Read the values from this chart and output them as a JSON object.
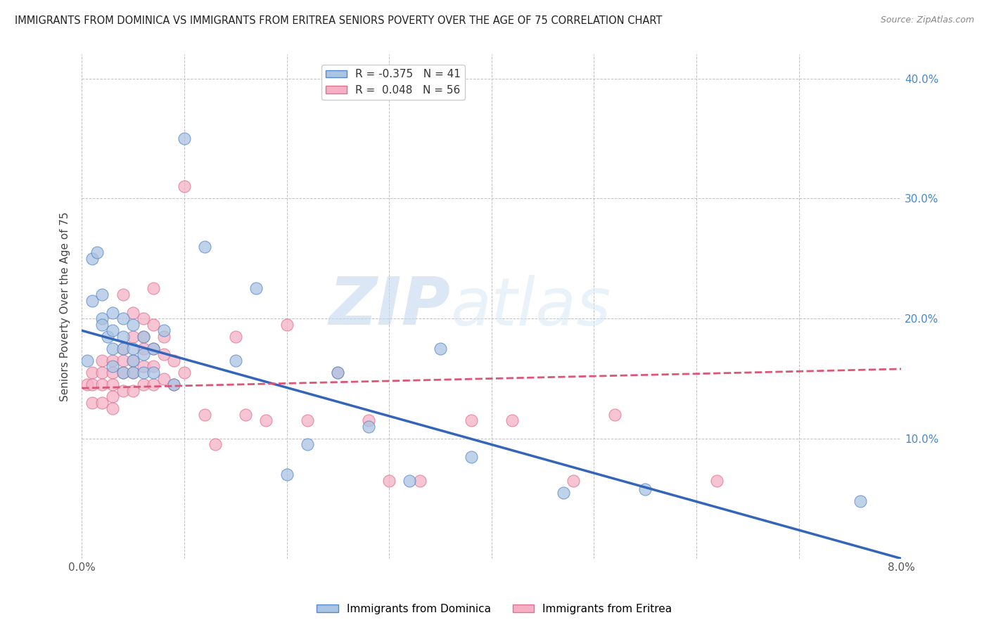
{
  "title": "IMMIGRANTS FROM DOMINICA VS IMMIGRANTS FROM ERITREA SENIORS POVERTY OVER THE AGE OF 75 CORRELATION CHART",
  "source": "Source: ZipAtlas.com",
  "ylabel": "Seniors Poverty Over the Age of 75",
  "xlim": [
    0.0,
    0.08
  ],
  "ylim": [
    0.0,
    0.42
  ],
  "dominica_R": "-0.375",
  "dominica_N": "41",
  "eritrea_R": "0.048",
  "eritrea_N": "56",
  "dominica_color": "#aac4e2",
  "eritrea_color": "#f5b0c5",
  "dominica_edge_color": "#5588cc",
  "eritrea_edge_color": "#e07090",
  "dominica_line_color": "#3366bb",
  "eritrea_line_color": "#dd5577",
  "watermark_zip": "ZIP",
  "watermark_atlas": "atlas",
  "dominica_x": [
    0.0005,
    0.001,
    0.001,
    0.0015,
    0.002,
    0.002,
    0.002,
    0.0025,
    0.003,
    0.003,
    0.003,
    0.003,
    0.004,
    0.004,
    0.004,
    0.004,
    0.005,
    0.005,
    0.005,
    0.005,
    0.006,
    0.006,
    0.006,
    0.007,
    0.007,
    0.008,
    0.009,
    0.01,
    0.012,
    0.015,
    0.017,
    0.02,
    0.022,
    0.025,
    0.028,
    0.032,
    0.035,
    0.038,
    0.047,
    0.055,
    0.076
  ],
  "dominica_y": [
    0.165,
    0.25,
    0.215,
    0.255,
    0.2,
    0.22,
    0.195,
    0.185,
    0.205,
    0.19,
    0.175,
    0.16,
    0.2,
    0.185,
    0.175,
    0.155,
    0.195,
    0.175,
    0.165,
    0.155,
    0.185,
    0.17,
    0.155,
    0.175,
    0.155,
    0.19,
    0.145,
    0.35,
    0.26,
    0.165,
    0.225,
    0.07,
    0.095,
    0.155,
    0.11,
    0.065,
    0.175,
    0.085,
    0.055,
    0.058,
    0.048
  ],
  "eritrea_x": [
    0.0005,
    0.001,
    0.001,
    0.001,
    0.002,
    0.002,
    0.002,
    0.002,
    0.003,
    0.003,
    0.003,
    0.003,
    0.003,
    0.004,
    0.004,
    0.004,
    0.004,
    0.004,
    0.005,
    0.005,
    0.005,
    0.005,
    0.005,
    0.006,
    0.006,
    0.006,
    0.006,
    0.006,
    0.007,
    0.007,
    0.007,
    0.007,
    0.007,
    0.008,
    0.008,
    0.008,
    0.009,
    0.009,
    0.01,
    0.01,
    0.012,
    0.013,
    0.015,
    0.016,
    0.018,
    0.02,
    0.022,
    0.025,
    0.028,
    0.03,
    0.033,
    0.038,
    0.042,
    0.048,
    0.052,
    0.062
  ],
  "eritrea_y": [
    0.145,
    0.155,
    0.145,
    0.13,
    0.165,
    0.155,
    0.145,
    0.13,
    0.165,
    0.155,
    0.145,
    0.135,
    0.125,
    0.22,
    0.175,
    0.165,
    0.155,
    0.14,
    0.205,
    0.185,
    0.165,
    0.155,
    0.14,
    0.2,
    0.185,
    0.175,
    0.16,
    0.145,
    0.225,
    0.195,
    0.175,
    0.16,
    0.145,
    0.185,
    0.17,
    0.15,
    0.165,
    0.145,
    0.31,
    0.155,
    0.12,
    0.095,
    0.185,
    0.12,
    0.115,
    0.195,
    0.115,
    0.155,
    0.115,
    0.065,
    0.065,
    0.115,
    0.115,
    0.065,
    0.12,
    0.065
  ],
  "dom_line_x0": 0.0,
  "dom_line_y0": 0.19,
  "dom_line_x1": 0.08,
  "dom_line_y1": 0.0,
  "eri_line_x0": 0.0,
  "eri_line_y0": 0.142,
  "eri_line_x1": 0.08,
  "eri_line_y1": 0.158
}
